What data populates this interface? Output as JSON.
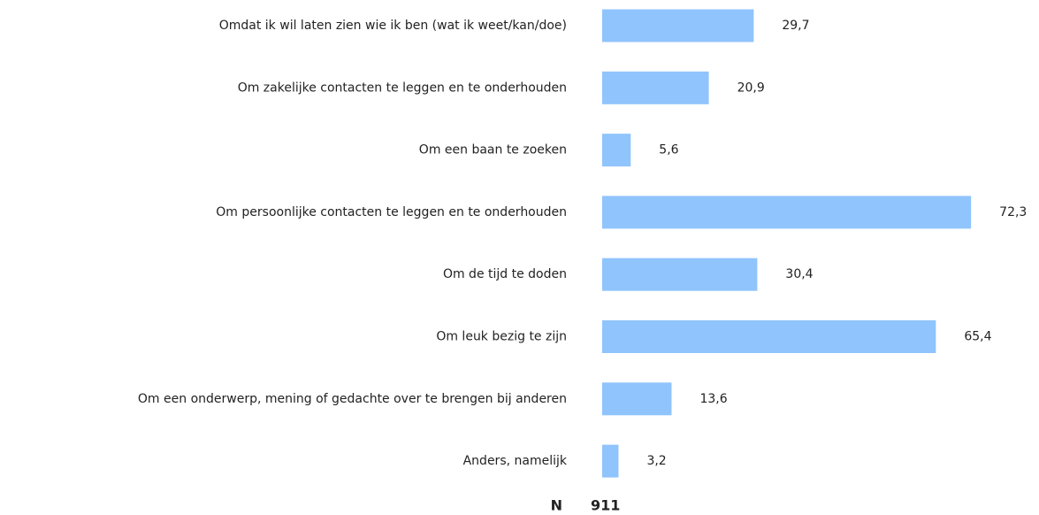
{
  "chart_data": {
    "type": "bar",
    "orientation": "horizontal",
    "categories": [
      "Omdat ik wil laten zien wie ik ben (wat ik weet/kan/doe)",
      "Om zakelijke contacten te leggen en te onderhouden",
      "Om een baan te zoeken",
      "Om persoonlijke contacten te leggen en te onderhouden",
      "Om de tijd te doden",
      "Om leuk bezig te zijn",
      "Om een onderwerp, mening of gedachte over te brengen bij anderen",
      "Anders, namelijk"
    ],
    "values": [
      29.7,
      20.9,
      5.6,
      72.3,
      30.4,
      65.4,
      13.6,
      3.2
    ],
    "value_labels": [
      "29,7",
      "20,9",
      "5,6",
      "72,3",
      "30,4",
      "65,4",
      "13,6",
      "3,2"
    ],
    "color": "#90c4fc",
    "n_label": "N",
    "n": 911
  }
}
